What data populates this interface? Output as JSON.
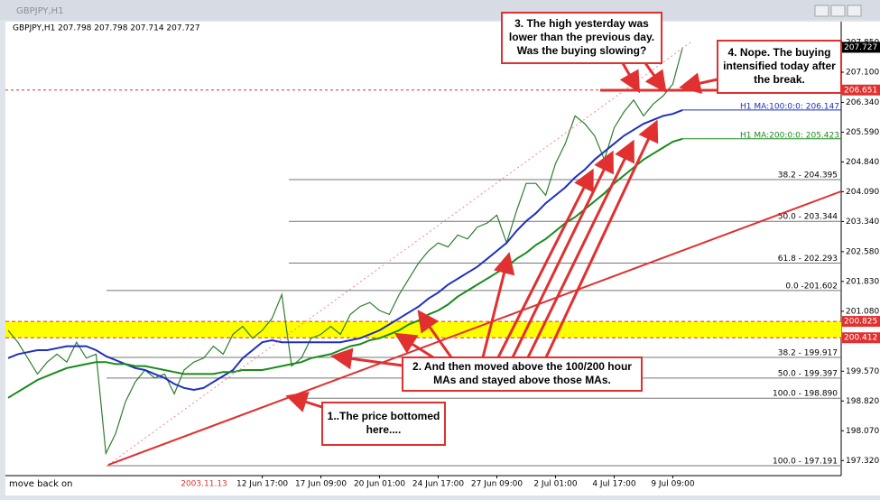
{
  "window": {
    "title": "GBPJPY,H1"
  },
  "status": "move back on",
  "chart_data": {
    "type": "line",
    "header": "GBPJPY,H1  207.798 207.798 207.714 207.727",
    "cursor_label": "2003.11.13",
    "categories": [
      null,
      null,
      null,
      null,
      null,
      null,
      null,
      null,
      null,
      null,
      null,
      null,
      null,
      null,
      null,
      null,
      null,
      null,
      null,
      null,
      null,
      null,
      null,
      null,
      null,
      null,
      "12 Jun 17:00",
      null,
      null,
      null,
      null,
      null,
      "17 Jun 09:00",
      null,
      null,
      null,
      null,
      null,
      "20 Jun 01:00",
      null,
      null,
      null,
      null,
      null,
      "24 Jun 17:00",
      null,
      null,
      null,
      null,
      null,
      "27 Jun 09:00",
      null,
      null,
      null,
      null,
      null,
      "2 Jul 01:00",
      null,
      null,
      null,
      null,
      null,
      "4 Jul 17:00",
      null,
      null,
      null,
      null,
      null,
      "9 Jul 09:00",
      null
    ],
    "series": [
      {
        "color": "#2f7d2f",
        "values": [
          200.6,
          200.3,
          199.9,
          199.5,
          199.8,
          200.0,
          199.8,
          200.3,
          199.9,
          200.0,
          197.5,
          198.0,
          198.8,
          199.3,
          199.6,
          199.4,
          199.5,
          199.0,
          199.6,
          199.8,
          199.9,
          200.2,
          200.0,
          200.5,
          200.7,
          200.4,
          200.6,
          200.9,
          201.5,
          199.7,
          199.9,
          200.4,
          200.5,
          200.7,
          200.5,
          201.0,
          201.2,
          201.3,
          201.1,
          201.0,
          201.5,
          201.9,
          202.3,
          202.6,
          202.8,
          202.7,
          203.0,
          202.9,
          203.2,
          203.3,
          203.5,
          202.8,
          203.6,
          204.3,
          204.3,
          204.0,
          204.8,
          205.3,
          206.0,
          205.8,
          205.5,
          204.9,
          205.7,
          206.1,
          206.4,
          206.0,
          206.3,
          206.5,
          206.8,
          207.727
        ]
      },
      {
        "name": "H1 MA:100:0:0: 206.147",
        "color": "#1f2fbf",
        "values": [
          199.9,
          200.0,
          200.05,
          200.1,
          200.1,
          200.15,
          200.2,
          200.2,
          200.2,
          200.1,
          199.95,
          199.85,
          199.75,
          199.65,
          199.6,
          199.5,
          199.4,
          199.25,
          199.15,
          199.1,
          199.15,
          199.3,
          199.45,
          199.6,
          199.9,
          200.1,
          200.3,
          200.35,
          200.3,
          200.3,
          200.3,
          200.3,
          200.3,
          200.3,
          200.3,
          200.35,
          200.4,
          200.5,
          200.6,
          200.75,
          200.9,
          201.05,
          201.2,
          201.4,
          201.55,
          201.75,
          201.9,
          202.05,
          202.2,
          202.4,
          202.6,
          202.8,
          203.1,
          203.35,
          203.55,
          203.8,
          204.0,
          204.2,
          204.45,
          204.65,
          204.9,
          205.1,
          205.3,
          205.5,
          205.65,
          205.8,
          205.9,
          206.0,
          206.05,
          206.147
        ]
      },
      {
        "name": "H1 MA:200:0:0: 205.423",
        "color": "#1a8a1a",
        "values": [
          198.9,
          199.05,
          199.2,
          199.35,
          199.45,
          199.55,
          199.65,
          199.7,
          199.75,
          199.8,
          199.8,
          199.75,
          199.75,
          199.7,
          199.7,
          199.65,
          199.6,
          199.55,
          199.5,
          199.5,
          199.5,
          199.5,
          199.55,
          199.55,
          199.6,
          199.6,
          199.6,
          199.65,
          199.7,
          199.75,
          199.8,
          199.9,
          199.95,
          200.0,
          200.1,
          200.2,
          200.25,
          200.35,
          200.4,
          200.5,
          200.6,
          200.75,
          200.85,
          201.0,
          201.1,
          201.25,
          201.45,
          201.6,
          201.75,
          201.9,
          202.05,
          202.2,
          202.4,
          202.55,
          202.75,
          202.9,
          203.1,
          203.3,
          203.45,
          203.65,
          203.85,
          204.05,
          204.3,
          204.5,
          204.7,
          204.9,
          205.05,
          205.2,
          205.35,
          205.423
        ]
      }
    ],
    "ylim": [
      196.94,
      208.35
    ],
    "yticks": [
      {
        "value": 207.85,
        "label": "207.850"
      },
      {
        "value": 207.1,
        "label": "207.100"
      },
      {
        "value": 206.34,
        "label": "206.340"
      },
      {
        "value": 205.59,
        "label": "205.590"
      },
      {
        "value": 204.84,
        "label": "204.840"
      },
      {
        "value": 204.09,
        "label": "204.090"
      },
      {
        "value": 203.34,
        "label": "203.340"
      },
      {
        "value": 202.58,
        "label": "202.580"
      },
      {
        "value": 201.83,
        "label": "201.830"
      },
      {
        "value": 201.08,
        "label": "201.080"
      },
      {
        "value": 199.57,
        "label": "199.570"
      },
      {
        "value": 198.82,
        "label": "198.820"
      },
      {
        "value": 198.07,
        "label": "198.070"
      },
      {
        "value": 197.32,
        "label": "197.320"
      }
    ],
    "fib_levels": [
      {
        "value": 204.395,
        "label": "38.2 - 204.395"
      },
      {
        "value": 203.344,
        "label": "50.0 - 203.344"
      },
      {
        "value": 202.293,
        "label": "61.8 - 202.293"
      },
      {
        "value": 201.602,
        "label": "0.0 -201.602"
      },
      {
        "value": 199.917,
        "label": "38.2 - 199.917"
      },
      {
        "value": 199.397,
        "label": "50.0 - 199.397"
      },
      {
        "value": 198.89,
        "label": "100.0 - 198.890"
      },
      {
        "value": 197.191,
        "label": "100.0 - 197.191"
      }
    ],
    "zone": [
      200.412,
      200.825
    ],
    "price_labels": [
      {
        "value": 207.727,
        "label": "207.727",
        "color": "#000000"
      },
      {
        "value": 206.651,
        "label": "206.651",
        "color": "#e03030"
      },
      {
        "value": 200.825,
        "label": "200.825",
        "color": "#e03030"
      },
      {
        "value": 200.412,
        "label": "200.412",
        "color": "#e03030"
      }
    ],
    "annotations": [
      {
        "lines": [
          "1..The price bottomed",
          "here...."
        ]
      },
      {
        "lines": [
          "2. And then moved above the 100/200 hour",
          "MAs and stayed above those MAs."
        ]
      },
      {
        "lines": [
          "3.  The high yesterday was",
          "lower than the previous day.",
          "Was the buying slowing?"
        ]
      },
      {
        "lines": [
          "4. Nope. The buying",
          "intensified today after",
          "the break."
        ]
      }
    ]
  }
}
